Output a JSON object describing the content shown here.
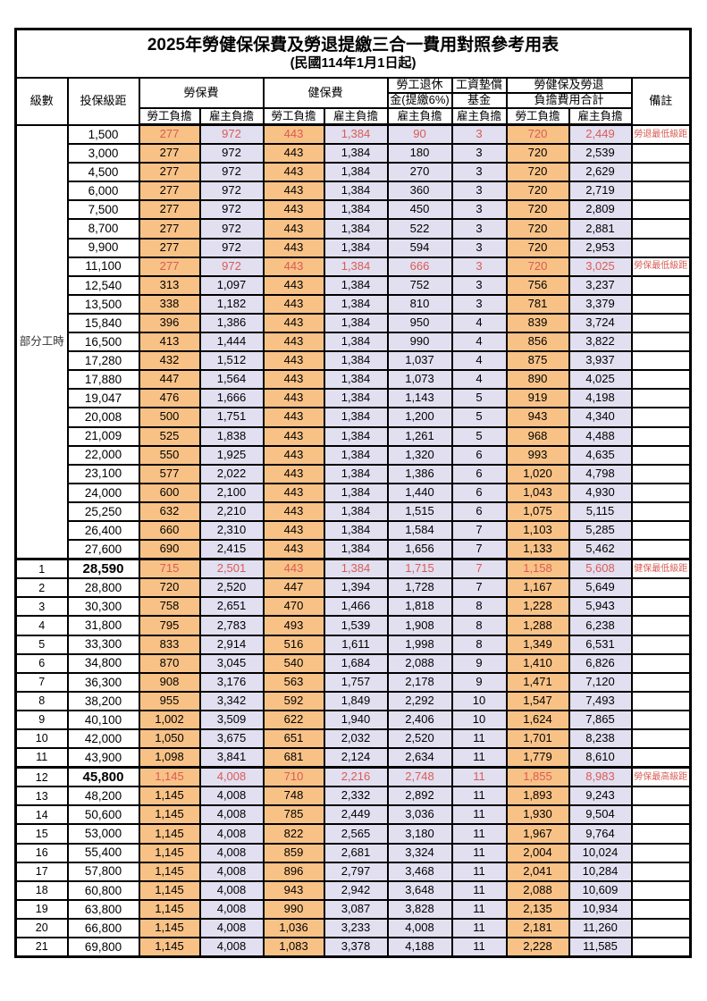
{
  "title": "2025年勞健保保費及勞退提繳三合一費用對照參考用表",
  "subtitle": "(民國114年1月1日起)",
  "colors": {
    "employee_column_bg": "#F8C287",
    "employer_column_bg": "#E2DFF0",
    "highlight_text": "#D85C55",
    "border": "#000000"
  },
  "header": {
    "level": "級數",
    "bracket": "投保級距",
    "labor_insurance": "勞保費",
    "health_insurance": "健保費",
    "pension_line1": "勞工退休",
    "pension_line2": "金(提繳6%)",
    "wage_fund_line1": "工資墊償",
    "wage_fund_line2": "基金",
    "total_line1": "勞健保及勞退",
    "total_line2": "負擔費用合計",
    "remark": "備註",
    "employee": "勞工負擔",
    "employer": "雇主負擔"
  },
  "table": {
    "part_time": {
      "label": "部分工時",
      "span": 23
    },
    "rows": [
      {
        "level": null,
        "bracket": "1,500",
        "labor_employee": "277",
        "labor_employer": "972",
        "health_employee": "443",
        "health_employer": "1,384",
        "pension_employer": "90",
        "wage_fund_employer": "3",
        "total_employee": "720",
        "total_employer": "2,449",
        "remark": "勞退最低級距",
        "red": true
      },
      {
        "level": null,
        "bracket": "3,000",
        "labor_employee": "277",
        "labor_employer": "972",
        "health_employee": "443",
        "health_employer": "1,384",
        "pension_employer": "180",
        "wage_fund_employer": "3",
        "total_employee": "720",
        "total_employer": "2,539",
        "remark": ""
      },
      {
        "level": null,
        "bracket": "4,500",
        "labor_employee": "277",
        "labor_employer": "972",
        "health_employee": "443",
        "health_employer": "1,384",
        "pension_employer": "270",
        "wage_fund_employer": "3",
        "total_employee": "720",
        "total_employer": "2,629",
        "remark": ""
      },
      {
        "level": null,
        "bracket": "6,000",
        "labor_employee": "277",
        "labor_employer": "972",
        "health_employee": "443",
        "health_employer": "1,384",
        "pension_employer": "360",
        "wage_fund_employer": "3",
        "total_employee": "720",
        "total_employer": "2,719",
        "remark": ""
      },
      {
        "level": null,
        "bracket": "7,500",
        "labor_employee": "277",
        "labor_employer": "972",
        "health_employee": "443",
        "health_employer": "1,384",
        "pension_employer": "450",
        "wage_fund_employer": "3",
        "total_employee": "720",
        "total_employer": "2,809",
        "remark": ""
      },
      {
        "level": null,
        "bracket": "8,700",
        "labor_employee": "277",
        "labor_employer": "972",
        "health_employee": "443",
        "health_employer": "1,384",
        "pension_employer": "522",
        "wage_fund_employer": "3",
        "total_employee": "720",
        "total_employer": "2,881",
        "remark": ""
      },
      {
        "level": null,
        "bracket": "9,900",
        "labor_employee": "277",
        "labor_employer": "972",
        "health_employee": "443",
        "health_employer": "1,384",
        "pension_employer": "594",
        "wage_fund_employer": "3",
        "total_employee": "720",
        "total_employer": "2,953",
        "remark": ""
      },
      {
        "level": null,
        "bracket": "11,100",
        "labor_employee": "277",
        "labor_employer": "972",
        "health_employee": "443",
        "health_employer": "1,384",
        "pension_employer": "666",
        "wage_fund_employer": "3",
        "total_employee": "720",
        "total_employer": "3,025",
        "remark": "勞保最低級距",
        "red": true
      },
      {
        "level": null,
        "bracket": "12,540",
        "labor_employee": "313",
        "labor_employer": "1,097",
        "health_employee": "443",
        "health_employer": "1,384",
        "pension_employer": "752",
        "wage_fund_employer": "3",
        "total_employee": "756",
        "total_employer": "3,237",
        "remark": ""
      },
      {
        "level": null,
        "bracket": "13,500",
        "labor_employee": "338",
        "labor_employer": "1,182",
        "health_employee": "443",
        "health_employer": "1,384",
        "pension_employer": "810",
        "wage_fund_employer": "3",
        "total_employee": "781",
        "total_employer": "3,379",
        "remark": ""
      },
      {
        "level": null,
        "bracket": "15,840",
        "labor_employee": "396",
        "labor_employer": "1,386",
        "health_employee": "443",
        "health_employer": "1,384",
        "pension_employer": "950",
        "wage_fund_employer": "4",
        "total_employee": "839",
        "total_employer": "3,724",
        "remark": ""
      },
      {
        "level": null,
        "bracket": "16,500",
        "labor_employee": "413",
        "labor_employer": "1,444",
        "health_employee": "443",
        "health_employer": "1,384",
        "pension_employer": "990",
        "wage_fund_employer": "4",
        "total_employee": "856",
        "total_employer": "3,822",
        "remark": ""
      },
      {
        "level": null,
        "bracket": "17,280",
        "labor_employee": "432",
        "labor_employer": "1,512",
        "health_employee": "443",
        "health_employer": "1,384",
        "pension_employer": "1,037",
        "wage_fund_employer": "4",
        "total_employee": "875",
        "total_employer": "3,937",
        "remark": ""
      },
      {
        "level": null,
        "bracket": "17,880",
        "labor_employee": "447",
        "labor_employer": "1,564",
        "health_employee": "443",
        "health_employer": "1,384",
        "pension_employer": "1,073",
        "wage_fund_employer": "4",
        "total_employee": "890",
        "total_employer": "4,025",
        "remark": ""
      },
      {
        "level": null,
        "bracket": "19,047",
        "labor_employee": "476",
        "labor_employer": "1,666",
        "health_employee": "443",
        "health_employer": "1,384",
        "pension_employer": "1,143",
        "wage_fund_employer": "5",
        "total_employee": "919",
        "total_employer": "4,198",
        "remark": ""
      },
      {
        "level": null,
        "bracket": "20,008",
        "labor_employee": "500",
        "labor_employer": "1,751",
        "health_employee": "443",
        "health_employer": "1,384",
        "pension_employer": "1,200",
        "wage_fund_employer": "5",
        "total_employee": "943",
        "total_employer": "4,340",
        "remark": ""
      },
      {
        "level": null,
        "bracket": "21,009",
        "labor_employee": "525",
        "labor_employer": "1,838",
        "health_employee": "443",
        "health_employer": "1,384",
        "pension_employer": "1,261",
        "wage_fund_employer": "5",
        "total_employee": "968",
        "total_employer": "4,488",
        "remark": ""
      },
      {
        "level": null,
        "bracket": "22,000",
        "labor_employee": "550",
        "labor_employer": "1,925",
        "health_employee": "443",
        "health_employer": "1,384",
        "pension_employer": "1,320",
        "wage_fund_employer": "6",
        "total_employee": "993",
        "total_employer": "4,635",
        "remark": ""
      },
      {
        "level": null,
        "bracket": "23,100",
        "labor_employee": "577",
        "labor_employer": "2,022",
        "health_employee": "443",
        "health_employer": "1,384",
        "pension_employer": "1,386",
        "wage_fund_employer": "6",
        "total_employee": "1,020",
        "total_employer": "4,798",
        "remark": ""
      },
      {
        "level": null,
        "bracket": "24,000",
        "labor_employee": "600",
        "labor_employer": "2,100",
        "health_employee": "443",
        "health_employer": "1,384",
        "pension_employer": "1,440",
        "wage_fund_employer": "6",
        "total_employee": "1,043",
        "total_employer": "4,930",
        "remark": ""
      },
      {
        "level": null,
        "bracket": "25,250",
        "labor_employee": "632",
        "labor_employer": "2,210",
        "health_employee": "443",
        "health_employer": "1,384",
        "pension_employer": "1,515",
        "wage_fund_employer": "6",
        "total_employee": "1,075",
        "total_employer": "5,115",
        "remark": ""
      },
      {
        "level": null,
        "bracket": "26,400",
        "labor_employee": "660",
        "labor_employer": "2,310",
        "health_employee": "443",
        "health_employer": "1,384",
        "pension_employer": "1,584",
        "wage_fund_employer": "7",
        "total_employee": "1,103",
        "total_employer": "5,285",
        "remark": ""
      },
      {
        "level": null,
        "bracket": "27,600",
        "labor_employee": "690",
        "labor_employer": "2,415",
        "health_employee": "443",
        "health_employer": "1,384",
        "pension_employer": "1,656",
        "wage_fund_employer": "7",
        "total_employee": "1,133",
        "total_employer": "5,462",
        "remark": ""
      },
      {
        "level": "1",
        "bracket": "28,590",
        "labor_employee": "715",
        "labor_employer": "2,501",
        "health_employee": "443",
        "health_employer": "1,384",
        "pension_employer": "1,715",
        "wage_fund_employer": "7",
        "total_employee": "1,158",
        "total_employer": "5,608",
        "remark": "健保最低級距",
        "red": true,
        "thick_top": true,
        "bold_bracket": true
      },
      {
        "level": "2",
        "bracket": "28,800",
        "labor_employee": "720",
        "labor_employer": "2,520",
        "health_employee": "447",
        "health_employer": "1,394",
        "pension_employer": "1,728",
        "wage_fund_employer": "7",
        "total_employee": "1,167",
        "total_employer": "5,649",
        "remark": ""
      },
      {
        "level": "3",
        "bracket": "30,300",
        "labor_employee": "758",
        "labor_employer": "2,651",
        "health_employee": "470",
        "health_employer": "1,466",
        "pension_employer": "1,818",
        "wage_fund_employer": "8",
        "total_employee": "1,228",
        "total_employer": "5,943",
        "remark": ""
      },
      {
        "level": "4",
        "bracket": "31,800",
        "labor_employee": "795",
        "labor_employer": "2,783",
        "health_employee": "493",
        "health_employer": "1,539",
        "pension_employer": "1,908",
        "wage_fund_employer": "8",
        "total_employee": "1,288",
        "total_employer": "6,238",
        "remark": ""
      },
      {
        "level": "5",
        "bracket": "33,300",
        "labor_employee": "833",
        "labor_employer": "2,914",
        "health_employee": "516",
        "health_employer": "1,611",
        "pension_employer": "1,998",
        "wage_fund_employer": "8",
        "total_employee": "1,349",
        "total_employer": "6,531",
        "remark": ""
      },
      {
        "level": "6",
        "bracket": "34,800",
        "labor_employee": "870",
        "labor_employer": "3,045",
        "health_employee": "540",
        "health_employer": "1,684",
        "pension_employer": "2,088",
        "wage_fund_employer": "9",
        "total_employee": "1,410",
        "total_employer": "6,826",
        "remark": ""
      },
      {
        "level": "7",
        "bracket": "36,300",
        "labor_employee": "908",
        "labor_employer": "3,176",
        "health_employee": "563",
        "health_employer": "1,757",
        "pension_employer": "2,178",
        "wage_fund_employer": "9",
        "total_employee": "1,471",
        "total_employer": "7,120",
        "remark": ""
      },
      {
        "level": "8",
        "bracket": "38,200",
        "labor_employee": "955",
        "labor_employer": "3,342",
        "health_employee": "592",
        "health_employer": "1,849",
        "pension_employer": "2,292",
        "wage_fund_employer": "10",
        "total_employee": "1,547",
        "total_employer": "7,493",
        "remark": ""
      },
      {
        "level": "9",
        "bracket": "40,100",
        "labor_employee": "1,002",
        "labor_employer": "3,509",
        "health_employee": "622",
        "health_employer": "1,940",
        "pension_employer": "2,406",
        "wage_fund_employer": "10",
        "total_employee": "1,624",
        "total_employer": "7,865",
        "remark": ""
      },
      {
        "level": "10",
        "bracket": "42,000",
        "labor_employee": "1,050",
        "labor_employer": "3,675",
        "health_employee": "651",
        "health_employer": "2,032",
        "pension_employer": "2,520",
        "wage_fund_employer": "11",
        "total_employee": "1,701",
        "total_employer": "8,238",
        "remark": ""
      },
      {
        "level": "11",
        "bracket": "43,900",
        "labor_employee": "1,098",
        "labor_employer": "3,841",
        "health_employee": "681",
        "health_employer": "2,124",
        "pension_employer": "2,634",
        "wage_fund_employer": "11",
        "total_employee": "1,779",
        "total_employer": "8,610",
        "remark": ""
      },
      {
        "level": "12",
        "bracket": "45,800",
        "labor_employee": "1,145",
        "labor_employer": "4,008",
        "health_employee": "710",
        "health_employer": "2,216",
        "pension_employer": "2,748",
        "wage_fund_employer": "11",
        "total_employee": "1,855",
        "total_employer": "8,983",
        "remark": "勞保最高級距",
        "red": true,
        "thick_top": true,
        "bold_bracket": true
      },
      {
        "level": "13",
        "bracket": "48,200",
        "labor_employee": "1,145",
        "labor_employer": "4,008",
        "health_employee": "748",
        "health_employer": "2,332",
        "pension_employer": "2,892",
        "wage_fund_employer": "11",
        "total_employee": "1,893",
        "total_employer": "9,243",
        "remark": ""
      },
      {
        "level": "14",
        "bracket": "50,600",
        "labor_employee": "1,145",
        "labor_employer": "4,008",
        "health_employee": "785",
        "health_employer": "2,449",
        "pension_employer": "3,036",
        "wage_fund_employer": "11",
        "total_employee": "1,930",
        "total_employer": "9,504",
        "remark": ""
      },
      {
        "level": "15",
        "bracket": "53,000",
        "labor_employee": "1,145",
        "labor_employer": "4,008",
        "health_employee": "822",
        "health_employer": "2,565",
        "pension_employer": "3,180",
        "wage_fund_employer": "11",
        "total_employee": "1,967",
        "total_employer": "9,764",
        "remark": ""
      },
      {
        "level": "16",
        "bracket": "55,400",
        "labor_employee": "1,145",
        "labor_employer": "4,008",
        "health_employee": "859",
        "health_employer": "2,681",
        "pension_employer": "3,324",
        "wage_fund_employer": "11",
        "total_employee": "2,004",
        "total_employer": "10,024",
        "remark": ""
      },
      {
        "level": "17",
        "bracket": "57,800",
        "labor_employee": "1,145",
        "labor_employer": "4,008",
        "health_employee": "896",
        "health_employer": "2,797",
        "pension_employer": "3,468",
        "wage_fund_employer": "11",
        "total_employee": "2,041",
        "total_employer": "10,284",
        "remark": ""
      },
      {
        "level": "18",
        "bracket": "60,800",
        "labor_employee": "1,145",
        "labor_employer": "4,008",
        "health_employee": "943",
        "health_employer": "2,942",
        "pension_employer": "3,648",
        "wage_fund_employer": "11",
        "total_employee": "2,088",
        "total_employer": "10,609",
        "remark": ""
      },
      {
        "level": "19",
        "bracket": "63,800",
        "labor_employee": "1,145",
        "labor_employer": "4,008",
        "health_employee": "990",
        "health_employer": "3,087",
        "pension_employer": "3,828",
        "wage_fund_employer": "11",
        "total_employee": "2,135",
        "total_employer": "10,934",
        "remark": ""
      },
      {
        "level": "20",
        "bracket": "66,800",
        "labor_employee": "1,145",
        "labor_employer": "4,008",
        "health_employee": "1,036",
        "health_employer": "3,233",
        "pension_employer": "4,008",
        "wage_fund_employer": "11",
        "total_employee": "2,181",
        "total_employer": "11,260",
        "remark": ""
      },
      {
        "level": "21",
        "bracket": "69,800",
        "labor_employee": "1,145",
        "labor_employer": "4,008",
        "health_employee": "1,083",
        "health_employer": "3,378",
        "pension_employer": "4,188",
        "wage_fund_employer": "11",
        "total_employee": "2,228",
        "total_employer": "11,585",
        "remark": ""
      }
    ]
  }
}
